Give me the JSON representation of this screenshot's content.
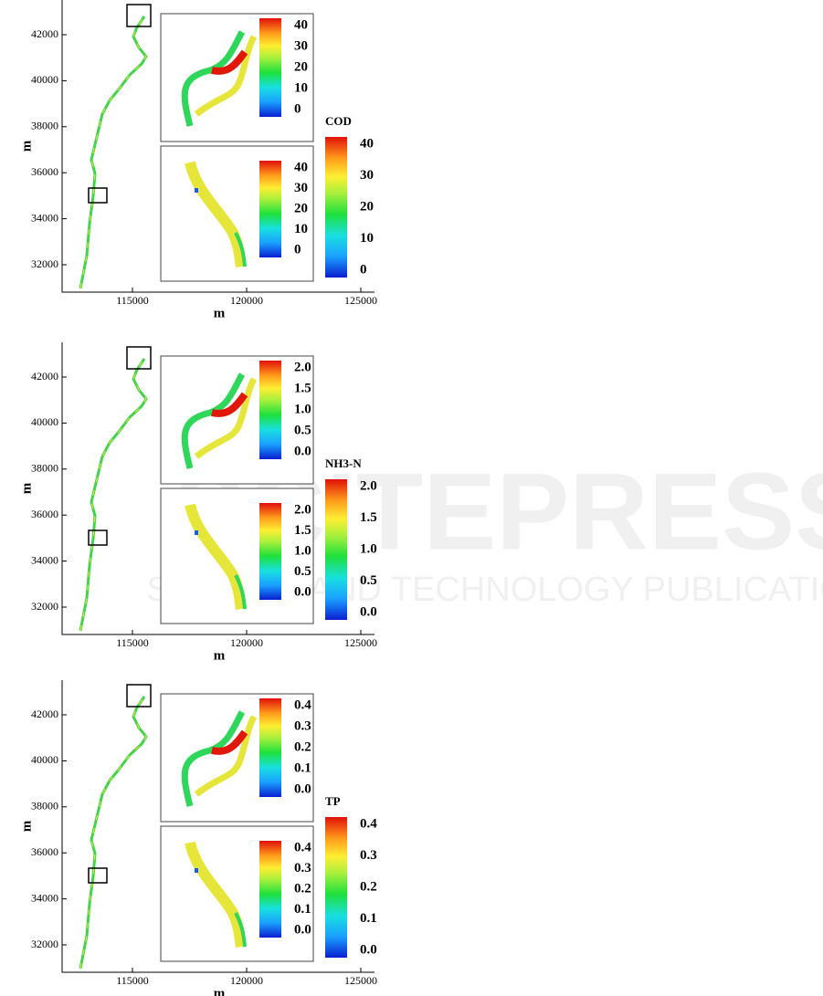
{
  "figure": {
    "panels": [
      {
        "variable": "COD",
        "x_label": "m",
        "y_label": "m",
        "y_ticks": [
          "42000",
          "40000",
          "38000",
          "36000",
          "34000",
          "32000"
        ],
        "x_ticks": [
          "115000",
          "120000",
          "125000"
        ],
        "inset_top_ticks": [
          "40",
          "30",
          "20",
          "10",
          "0"
        ],
        "inset_bottom_ticks": [
          "40",
          "30",
          "20",
          "10",
          "0"
        ],
        "colorbar_ticks": [
          "40",
          "30",
          "20",
          "10",
          "0"
        ]
      },
      {
        "variable": "NH3-N",
        "x_label": "m",
        "y_label": "m",
        "y_ticks": [
          "42000",
          "40000",
          "38000",
          "36000",
          "34000",
          "32000"
        ],
        "x_ticks": [
          "115000",
          "120000",
          "125000"
        ],
        "inset_top_ticks": [
          "2.0",
          "1.5",
          "1.0",
          "0.5",
          "0.0"
        ],
        "inset_bottom_ticks": [
          "2.0",
          "1.5",
          "1.0",
          "0.5",
          "0.0"
        ],
        "colorbar_ticks": [
          "2.0",
          "1.5",
          "1.0",
          "0.5",
          "0.0"
        ]
      },
      {
        "variable": "TP",
        "x_label": "m",
        "y_label": "m",
        "y_ticks": [
          "42000",
          "40000",
          "38000",
          "36000",
          "34000",
          "32000"
        ],
        "x_ticks": [
          "115000",
          "120000",
          "125000"
        ],
        "inset_top_ticks": [
          "0.4",
          "0.3",
          "0.2",
          "0.1",
          "0.0"
        ],
        "inset_bottom_ticks": [
          "0.4",
          "0.3",
          "0.2",
          "0.1",
          "0.0"
        ],
        "colorbar_ticks": [
          "0.4",
          "0.3",
          "0.2",
          "0.1",
          "0.0"
        ]
      }
    ]
  },
  "watermark": {
    "title": "SCITEPRESS",
    "subtitle": "SCIENCE AND TECHNOLOGY PUBLICATIONS"
  }
}
